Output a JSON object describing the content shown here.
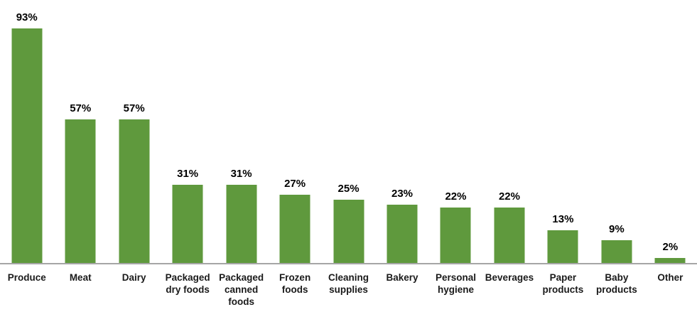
{
  "chart_data": {
    "type": "bar",
    "title": "",
    "xlabel": "",
    "ylabel": "",
    "categories": [
      "Produce",
      "Meat",
      "Dairy",
      "Packaged dry foods",
      "Packaged canned foods",
      "Frozen foods",
      "Cleaning supplies",
      "Bakery",
      "Personal hygiene",
      "Beverages",
      "Paper products",
      "Baby products",
      "Other"
    ],
    "values": [
      93,
      57,
      57,
      31,
      31,
      27,
      25,
      23,
      22,
      22,
      13,
      9,
      2
    ],
    "value_labels": [
      "93%",
      "57%",
      "57%",
      "31%",
      "31%",
      "27%",
      "25%",
      "23%",
      "22%",
      "22%",
      "13%",
      "9%",
      "2%"
    ],
    "unit": "%",
    "ylim": [
      0,
      100
    ],
    "grid": false,
    "legend": "none",
    "bar_color": "#5f993d",
    "axis_line_color": "#a6a6a6",
    "value_label_color": "#000000",
    "category_label_color": "#1a1a1a"
  }
}
